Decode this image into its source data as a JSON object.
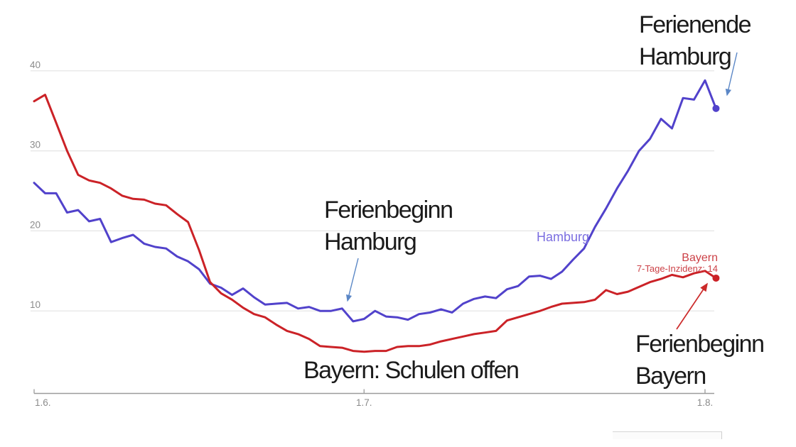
{
  "page": {
    "background": "#ffffff"
  },
  "colors": {
    "hamburg_line": "#5142cb",
    "bayern_line": "#cb2227",
    "hamburg_label": "#7b6ee0",
    "bayern_label": "#cc4147",
    "blue_arrow": "#5b87c6",
    "red_arrow": "#cc2a2a",
    "gridline": "#e4e4e4",
    "axis_line": "#9b9b9b",
    "tick_text": "#8b8b8b",
    "annotation_text": "#1b1b1b"
  },
  "chart_data": {
    "type": "line",
    "x_axis": {
      "tick_labels": [
        "1.6.",
        "1.7.",
        "1.8."
      ],
      "tick_day_indices": [
        0,
        30,
        61
      ],
      "n_points": 63
    },
    "y_axis": {
      "tick_labels": [
        "10",
        "20",
        "30",
        "40"
      ],
      "tick_values": [
        10,
        20,
        30,
        40
      ],
      "range": [
        0,
        42
      ],
      "grid": true
    },
    "series": [
      {
        "name": "Hamburg",
        "color": "#5142cb",
        "end_dot": true,
        "values": [
          26.0,
          24.7,
          24.7,
          22.3,
          22.6,
          21.2,
          21.5,
          18.6,
          19.1,
          19.5,
          18.4,
          18.0,
          17.8,
          16.8,
          16.2,
          15.2,
          13.4,
          12.9,
          12.0,
          12.8,
          11.7,
          10.8,
          10.9,
          11.0,
          10.3,
          10.5,
          10.0,
          10.0,
          10.3,
          8.7,
          9.0,
          10.0,
          9.3,
          9.2,
          8.9,
          9.6,
          9.8,
          10.2,
          9.8,
          10.9,
          11.5,
          11.8,
          11.6,
          12.7,
          13.1,
          14.3,
          14.4,
          14.0,
          14.9,
          16.4,
          17.8,
          20.5,
          22.8,
          25.3,
          27.5,
          30.0,
          31.5,
          34.0,
          32.8,
          36.6,
          36.4,
          38.8,
          35.3
        ]
      },
      {
        "name": "Bayern",
        "color": "#cb2227",
        "end_dot": true,
        "last_value_label": "7-Tage-Inzidenz: 14",
        "values": [
          36.2,
          37.0,
          33.5,
          30.0,
          27.0,
          26.3,
          26.0,
          25.3,
          24.4,
          24.0,
          23.9,
          23.4,
          23.2,
          22.1,
          21.1,
          17.6,
          13.6,
          12.2,
          11.4,
          10.4,
          9.6,
          9.2,
          8.3,
          7.5,
          7.1,
          6.5,
          5.6,
          5.5,
          5.4,
          5.0,
          4.9,
          5.0,
          5.0,
          5.5,
          5.6,
          5.6,
          5.8,
          6.2,
          6.5,
          6.8,
          7.1,
          7.3,
          7.5,
          8.8,
          9.2,
          9.6,
          10.0,
          10.5,
          10.9,
          11.0,
          11.1,
          11.4,
          12.6,
          12.1,
          12.4,
          13.0,
          13.6,
          14.0,
          14.5,
          14.2,
          14.7,
          15.0,
          14.1
        ]
      }
    ],
    "legend_position": "inline-labels"
  },
  "annotations": {
    "ferienende_hamburg": {
      "line1": "Ferienende",
      "line2": "Hamburg"
    },
    "ferienbeginn_hamburg": {
      "line1": "Ferienbeginn",
      "line2": "Hamburg"
    },
    "bayern_schulen_offen": {
      "text": "Bayern: Schulen offen"
    },
    "ferienbeginn_bayern": {
      "line1": "Ferienbeginn",
      "line2": "Bayern"
    }
  },
  "series_labels": {
    "hamburg": "Hamburg",
    "bayern": "Bayern",
    "bayern_value": "7-Tage-Inzidenz: 14"
  }
}
